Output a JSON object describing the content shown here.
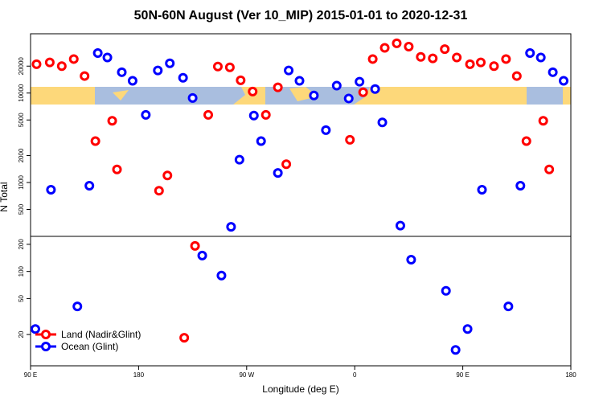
{
  "chart_data": [
    {
      "type": "scatter",
      "title": "50N-60N August (Ver 10_MIP)   2015-01-01 to 2020-12-31",
      "ylabel": "N Total",
      "xlim": [
        90,
        540
      ],
      "ylim": [
        250,
        46000
      ],
      "yscale": "log",
      "yticks": [
        500,
        1000,
        2000,
        5000,
        10000,
        20000
      ],
      "series": [
        {
          "color": "#ff0000",
          "x": [
            95,
            106,
            116,
            126,
            135,
            144,
            158,
            162,
            197,
            204,
            238,
            246,
            256,
            265,
            275,
            286,
            296,
            303,
            356,
            367,
            375,
            385,
            395,
            405,
            415,
            425,
            435,
            445,
            456,
            465,
            476,
            486,
            495,
            503,
            517,
            522
          ],
          "values": [
            21000,
            22000,
            20000,
            24000,
            15500,
            2900,
            4900,
            1400,
            810,
            1200,
            5700,
            19800,
            19400,
            13900,
            10400,
            5700,
            11600,
            1600,
            3000,
            10200,
            24000,
            32000,
            36000,
            33000,
            25400,
            24400,
            31000,
            25000,
            21000,
            22000,
            20000,
            24000,
            15500,
            2900,
            4900,
            1400
          ]
        },
        {
          "color": "#0000ff",
          "x": [
            107,
            139,
            146,
            154,
            166,
            175,
            186,
            196,
            206,
            217,
            225,
            257,
            264,
            276,
            282,
            296,
            305,
            314,
            326,
            336,
            345,
            355,
            364,
            377,
            383,
            398,
            466,
            498,
            506,
            515,
            525,
            534
          ],
          "values": [
            830,
            920,
            28000,
            25000,
            17100,
            13700,
            5700,
            17900,
            21500,
            14800,
            8800,
            320,
            1800,
            5600,
            2900,
            1280,
            17900,
            13700,
            9400,
            3850,
            12100,
            8700,
            13400,
            11100,
            4700,
            330,
            830,
            920,
            28000,
            25000,
            17100,
            13700
          ]
        }
      ]
    },
    {
      "type": "scatter",
      "xlabel": "Longitude (deg E)",
      "xlim": [
        90,
        540
      ],
      "ylim": [
        9,
        245
      ],
      "yscale": "log",
      "yticks": [
        20,
        50,
        100,
        200
      ],
      "xticks": [
        {
          "value": 90,
          "label": "90 E"
        },
        180,
        {
          "value": 270,
          "label": "90 W"
        },
        {
          "value": 360,
          "label": "0"
        },
        {
          "value": 450,
          "label": "90 E"
        },
        {
          "value": 540,
          "label": "180"
        }
      ],
      "legend": "bottom left",
      "series": [
        {
          "name": "Land (Nadir&Glint)",
          "color": "#ff0000",
          "x": [
            218,
            227
          ],
          "values": [
            18.4,
            192
          ]
        },
        {
          "name": "Ocean (Glint)",
          "color": "#0000ff",
          "x": [
            94,
            129,
            233,
            249,
            407,
            436,
            444,
            454,
            488
          ],
          "values": [
            23,
            41,
            150,
            90,
            135,
            61,
            13.5,
            23,
            41
          ]
        }
      ]
    }
  ]
}
